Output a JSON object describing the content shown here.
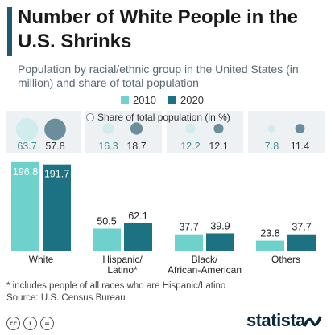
{
  "title": "Number of White People in the U.S. Shrinks",
  "subtitle": "Population by racial/ethnic group in the United States (in million) and share of total population",
  "legend": [
    "2010",
    "2020"
  ],
  "share_legend": "Share of total population (in %)",
  "colors": {
    "2010": "#6ed1cc",
    "2020": "#1c7282",
    "share_2010": "#d1ecec",
    "share_2020": "#6b8e9c",
    "accent": "#1f5a6b"
  },
  "chart_data": {
    "type": "bar",
    "title": "Number of White People in the U.S. Shrinks",
    "categories": [
      "White",
      "Hispanic/\nLatino*",
      "Black/\nAfrican-American",
      "Others"
    ],
    "series": [
      {
        "name": "2010",
        "values": [
          196.8,
          50.5,
          37.7,
          23.8
        ]
      },
      {
        "name": "2020",
        "values": [
          191.7,
          62.1,
          39.9,
          37.7
        ]
      }
    ],
    "share": {
      "2010": [
        63.7,
        16.3,
        12.2,
        7.8
      ],
      "2020": [
        57.8,
        18.7,
        12.1,
        11.4
      ]
    },
    "share_labels": {
      "2010": [
        "63.7",
        "16.3",
        "12.2",
        "7.8"
      ],
      "2020": [
        "57.8",
        "18.7",
        "12.1",
        "11.4"
      ]
    },
    "value_labels": {
      "2010": [
        "196.8",
        "50.5",
        "37.7",
        "23.8"
      ],
      "2020": [
        "191.7",
        "62.1",
        "39.9",
        "37.7"
      ]
    },
    "ylim": [
      0,
      200
    ],
    "legend_position": "top-center",
    "grid": false
  },
  "footnote": "* includes people of all races who are Hispanic/Latino",
  "source": "Source: U.S. Census Bureau",
  "brand": "statista",
  "license_icons": [
    "creative-commons-icon",
    "attribution-icon",
    "no-derivatives-icon"
  ]
}
